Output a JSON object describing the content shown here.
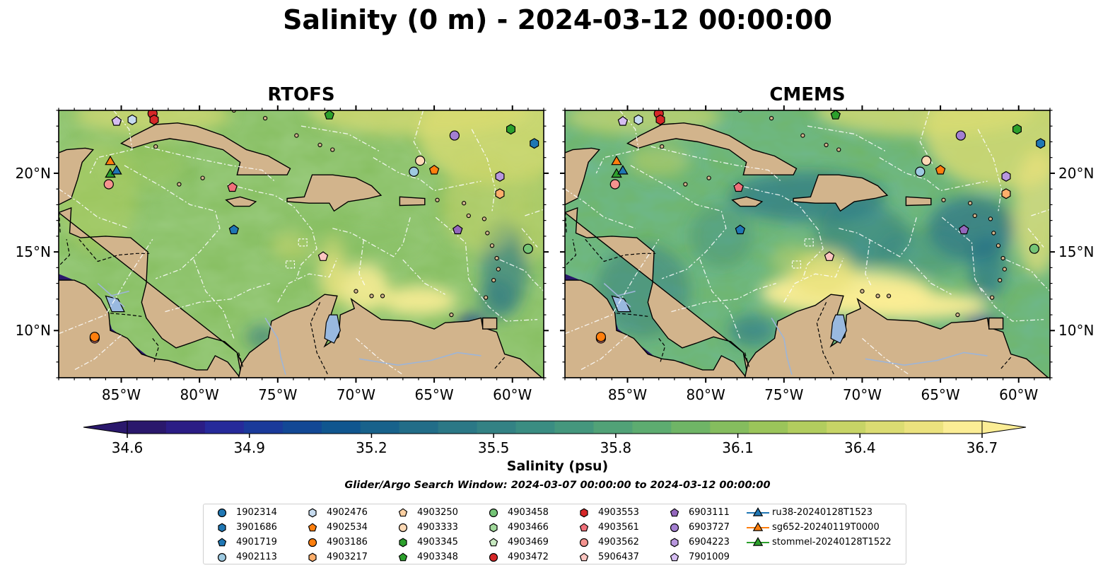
{
  "title": "Salinity (0 m) - 2024-03-12 00:00:00",
  "panels": [
    {
      "title": "RTOFS",
      "variant": "rtofs"
    },
    {
      "title": "CMEMS",
      "variant": "cmems"
    }
  ],
  "map": {
    "lon_range": [
      -89,
      -58
    ],
    "lat_range": [
      7,
      24
    ],
    "x_ticks": [
      "85°W",
      "80°W",
      "75°W",
      "70°W",
      "65°W",
      "60°W"
    ],
    "x_tick_lons": [
      -85,
      -80,
      -75,
      -70,
      -65,
      -60
    ],
    "y_ticks": [
      "20°N",
      "15°N",
      "10°N"
    ],
    "y_tick_lats": [
      20,
      15,
      10
    ],
    "land_color": "#d2b48c",
    "lake_color": "#99b9df",
    "eez_line_color": "#ffffff"
  },
  "colorbar": {
    "label": "Salinity (psu)",
    "min": 34.6,
    "max": 36.7,
    "step": 0.1,
    "extend": "both",
    "cmap": "haline",
    "ticks": [
      "34.6",
      "34.9",
      "35.2",
      "35.5",
      "35.8",
      "36.1",
      "36.4",
      "36.7"
    ],
    "tick_values": [
      34.6,
      34.9,
      35.2,
      35.5,
      35.8,
      36.1,
      36.4,
      36.7
    ],
    "colors": [
      "#2a186c",
      "#2b1d85",
      "#262a9a",
      "#1a3a9a",
      "#124895",
      "#10568f",
      "#18628b",
      "#226d88",
      "#2b7886",
      "#338284",
      "#3a8d82",
      "#44977d",
      "#51a277",
      "#5dac70",
      "#6fb566",
      "#85bd5e",
      "#9bc55a",
      "#b2cd5e",
      "#c7d466",
      "#dbdc72",
      "#ebe27e",
      "#fbed95"
    ]
  },
  "search_window": "Glider/Argo Search Window: 2024-03-07 00:00:00 to 2024-03-12 00:00:00",
  "legend": [
    {
      "label": "1902314",
      "marker": "circle",
      "color": "#1f77b4"
    },
    {
      "label": "3901686",
      "marker": "hexagon",
      "color": "#1f77b4"
    },
    {
      "label": "4901719",
      "marker": "pentagon",
      "color": "#1f77b4"
    },
    {
      "label": "4902113",
      "marker": "circle",
      "color": "#9ecae1"
    },
    {
      "label": "4902476",
      "marker": "hexagon",
      "color": "#c6dbef"
    },
    {
      "label": "4902534",
      "marker": "pentagon",
      "color": "#ff7f0e"
    },
    {
      "label": "4903186",
      "marker": "circle",
      "color": "#ff7f0e"
    },
    {
      "label": "4903217",
      "marker": "hexagon",
      "color": "#fdae6b"
    },
    {
      "label": "4903250",
      "marker": "pentagon",
      "color": "#fdd0a2"
    },
    {
      "label": "4903333",
      "marker": "circle",
      "color": "#fdd9b5"
    },
    {
      "label": "4903345",
      "marker": "hexagon",
      "color": "#2ca02c"
    },
    {
      "label": "4903348",
      "marker": "pentagon",
      "color": "#2ca02c"
    },
    {
      "label": "4903458",
      "marker": "circle",
      "color": "#74c476"
    },
    {
      "label": "4903466",
      "marker": "hexagon",
      "color": "#a1d99b"
    },
    {
      "label": "4903469",
      "marker": "pentagon",
      "color": "#c7e9c0"
    },
    {
      "label": "4903472",
      "marker": "circle",
      "color": "#d62728"
    },
    {
      "label": "4903553",
      "marker": "hexagon",
      "color": "#d62728"
    },
    {
      "label": "4903561",
      "marker": "pentagon",
      "color": "#f0707a"
    },
    {
      "label": "4903562",
      "marker": "circle",
      "color": "#f4938f"
    },
    {
      "label": "5906437",
      "marker": "pentagon",
      "color": "#fcc5c0"
    },
    {
      "label": "6903111",
      "marker": "pentagon",
      "color": "#9467bd"
    },
    {
      "label": "6903727",
      "marker": "circle",
      "color": "#a37fd1"
    },
    {
      "label": "6904223",
      "marker": "hexagon",
      "color": "#b897de"
    },
    {
      "label": "7901009",
      "marker": "pentagon",
      "color": "#d5bdf2"
    },
    {
      "label": "ru38-20240128T1523",
      "marker": "triangle-line",
      "color": "#1f77b4"
    },
    {
      "label": "sg652-20240119T0000",
      "marker": "triangle-line",
      "color": "#ff7f0e"
    },
    {
      "label": "stommel-20240128T1522",
      "marker": "triangle-line",
      "color": "#2ca02c"
    }
  ],
  "floats": [
    {
      "id": "4903562",
      "lon": -86.7,
      "lat": 9.5
    },
    {
      "id": "7901009",
      "lon": -85.3,
      "lat": 23.3
    },
    {
      "id": "4902476",
      "lon": -84.3,
      "lat": 23.4
    },
    {
      "id": "4903472",
      "lon": -83.0,
      "lat": 23.8
    },
    {
      "id": "4903553",
      "lon": -82.9,
      "lat": 23.4
    },
    {
      "id": "4903186",
      "lon": -86.7,
      "lat": 9.6
    },
    {
      "id": "4903562",
      "lon": -85.8,
      "lat": 19.3
    },
    {
      "id": "sg652-20240119T0000",
      "lon": -85.7,
      "lat": 20.8
    },
    {
      "id": "stommel-20240128T1522",
      "lon": -85.7,
      "lat": 20.0
    },
    {
      "id": "ru38-20240128T1523",
      "lon": -85.3,
      "lat": 20.2
    },
    {
      "id": "4903561",
      "lon": -77.9,
      "lat": 19.1
    },
    {
      "id": "4901719",
      "lon": -77.8,
      "lat": 16.4
    },
    {
      "id": "4903348",
      "lon": -71.7,
      "lat": 23.7
    },
    {
      "id": "5906437",
      "lon": -72.1,
      "lat": 14.7
    },
    {
      "id": "4903333",
      "lon": -65.9,
      "lat": 20.8
    },
    {
      "id": "4902113",
      "lon": -66.3,
      "lat": 20.1
    },
    {
      "id": "4902534",
      "lon": -65.0,
      "lat": 20.2
    },
    {
      "id": "6903727",
      "lon": -63.7,
      "lat": 22.4
    },
    {
      "id": "6903111",
      "lon": -63.5,
      "lat": 16.4
    },
    {
      "id": "4903345",
      "lon": -60.1,
      "lat": 22.8
    },
    {
      "id": "3901686",
      "lon": -58.6,
      "lat": 21.9
    },
    {
      "id": "6904223",
      "lon": -60.8,
      "lat": 19.8
    },
    {
      "id": "4903217",
      "lon": -60.8,
      "lat": 18.7
    },
    {
      "id": "4903458",
      "lon": -59.0,
      "lat": 15.2
    }
  ]
}
